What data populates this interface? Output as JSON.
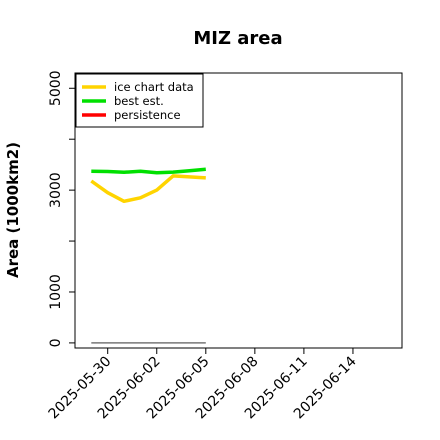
{
  "chart_data": {
    "type": "line",
    "title": "MIZ area",
    "xlabel": "",
    "ylabel": "Area (1000km2)",
    "ylim": [
      -100,
      5300
    ],
    "xlim": [
      "2025-05-28",
      "2025-06-17"
    ],
    "x_ticks": [
      "2025-05-30",
      "2025-06-02",
      "2025-06-05",
      "2025-06-08",
      "2025-06-11",
      "2025-06-14"
    ],
    "y_ticks": [
      0,
      1000,
      3000,
      5000
    ],
    "y_minor_ticks": [
      2000,
      4000
    ],
    "grid": false,
    "legend_position": "top-left",
    "legend": [
      {
        "label": "ice chart data",
        "color": "#FFD400"
      },
      {
        "label": "best est.",
        "color": "#00E000"
      },
      {
        "label": "persistence",
        "color": "#FF0000"
      }
    ],
    "series": [
      {
        "name": "ice chart data",
        "color": "#FFD400",
        "x": [
          "2025-05-29",
          "2025-05-30",
          "2025-05-31",
          "2025-06-01",
          "2025-06-02",
          "2025-06-03",
          "2025-06-04",
          "2025-06-05"
        ],
        "y": [
          3180,
          2950,
          2780,
          2850,
          3000,
          3280,
          3260,
          3240
        ]
      },
      {
        "name": "best est.",
        "color": "#00E000",
        "x": [
          "2025-05-29",
          "2025-05-30",
          "2025-05-31",
          "2025-06-01",
          "2025-06-02",
          "2025-06-03",
          "2025-06-04",
          "2025-06-05"
        ],
        "y": [
          3370,
          3365,
          3350,
          3370,
          3340,
          3355,
          3380,
          3410
        ]
      },
      {
        "name": "persistence",
        "color": "#FF0000",
        "x": [],
        "y": []
      },
      {
        "name": "",
        "color": "#777777",
        "x": [
          "2025-05-29",
          "2025-06-05"
        ],
        "y": [
          0,
          0
        ]
      }
    ]
  }
}
